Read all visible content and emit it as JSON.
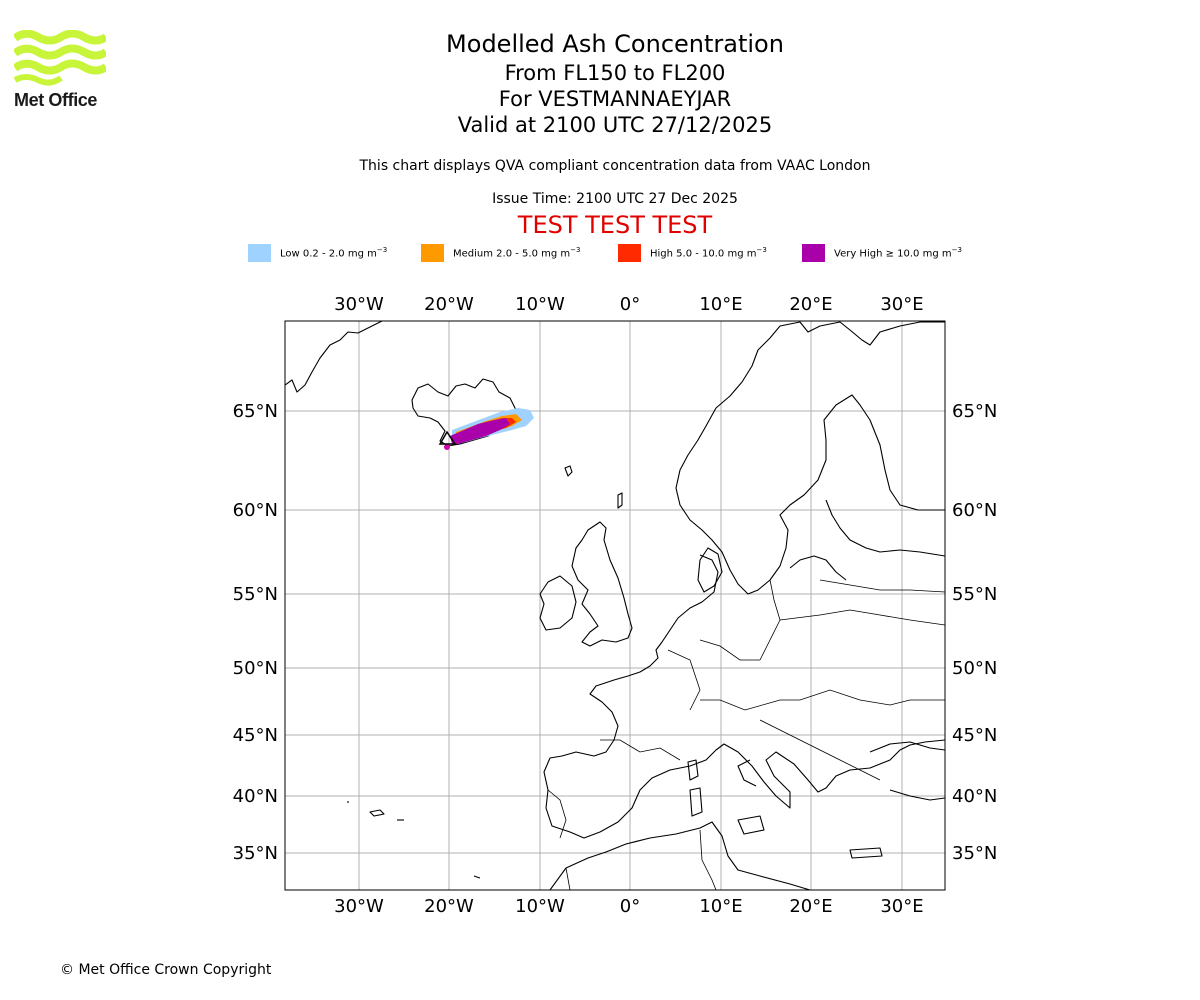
{
  "logo": {
    "text": "Met Office"
  },
  "title": {
    "line1": "Modelled Ash Concentration",
    "line2": "From FL150 to FL200",
    "line3": "For VESTMANNAEYJAR",
    "line4": "Valid at 2100 UTC 27/12/2025"
  },
  "subtitle": "This chart displays QVA compliant concentration data from VAAC London",
  "issue_time": "Issue Time: 2100 UTC 27 Dec 2025",
  "test_banner": "TEST TEST TEST",
  "colors": {
    "low": "#a0d2ff",
    "medium": "#ff9900",
    "high": "#ff2a00",
    "very_high": "#aa00aa",
    "test": "#e00000",
    "grid": "#b0b0b0"
  },
  "legend": [
    {
      "label": "Low 0.2 - 2.0 mg m",
      "exp": "−3"
    },
    {
      "label": "Medium 2.0 - 5.0 mg m",
      "exp": "−3"
    },
    {
      "label": "High 5.0 - 10.0 mg m",
      "exp": "−3"
    },
    {
      "label": "Very High  ≥  10.0 mg m",
      "exp": "−3"
    }
  ],
  "map": {
    "lon_range": [
      -38,
      35
    ],
    "lat_range": [
      32,
      69
    ],
    "lon_labels": [
      "30°W",
      "20°W",
      "10°W",
      "0°",
      "10°E",
      "20°E",
      "30°E"
    ],
    "lat_labels": [
      "65°N",
      "60°N",
      "55°N",
      "50°N",
      "45°N",
      "40°N",
      "35°N"
    ],
    "volcano_marker": "triangle-outline"
  },
  "copyright": "© Met Office Crown Copyright"
}
